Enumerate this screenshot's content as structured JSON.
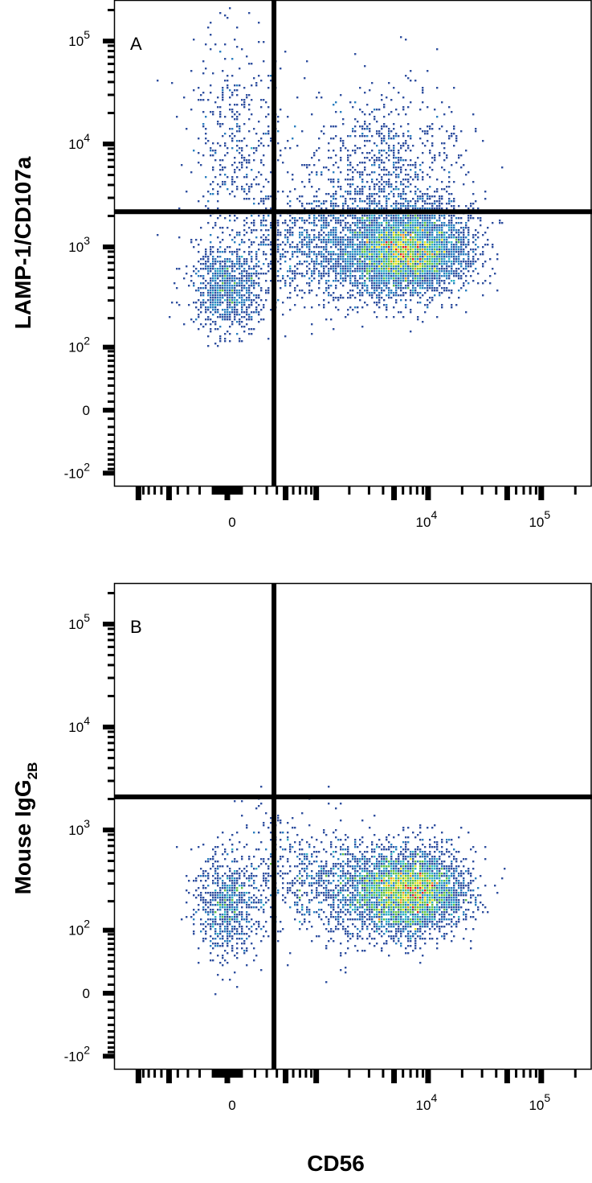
{
  "chart_data": [
    {
      "type": "scatter",
      "subtype": "flow-cytometry-density-dot-plot",
      "panel_label": "A",
      "xlabel": "CD56",
      "ylabel": "LAMP-1/CD107a",
      "x_scale": "biexponential",
      "y_scale": "biexponential",
      "x_ticks": [
        {
          "value": 0,
          "base": "0",
          "exp": ""
        },
        {
          "value": 10000,
          "base": "10",
          "exp": "4"
        },
        {
          "value": 100000,
          "base": "10",
          "exp": "5"
        }
      ],
      "y_ticks": [
        {
          "value": -100,
          "base": "-10",
          "exp": "2"
        },
        {
          "value": 0,
          "base": "0",
          "exp": ""
        },
        {
          "value": 100,
          "base": "10",
          "exp": "2"
        },
        {
          "value": 1000,
          "base": "10",
          "exp": "3"
        },
        {
          "value": 10000,
          "base": "10",
          "exp": "4"
        },
        {
          "value": 100000,
          "base": "10",
          "exp": "5"
        }
      ],
      "quadrant_gate": {
        "x": 370,
        "y": 2200
      },
      "populations": [
        {
          "x": 7000,
          "y": 900,
          "sd_x_decades": 0.26,
          "sd_y_decades": 0.2,
          "events": 3600
        },
        {
          "x": 3000,
          "y": 900,
          "sd_x_decades": 0.35,
          "sd_y_decades": 0.25,
          "events": 1300
        },
        {
          "x": 0,
          "y": 400,
          "sd_x_decades": 0.16,
          "sd_y_decades": 0.22,
          "events": 900
        },
        {
          "x": 4000,
          "y": 5000,
          "sd_x_decades": 0.35,
          "sd_y_decades": 0.4,
          "events": 900
        },
        {
          "x": 60,
          "y": 9000,
          "sd_x_decades": 0.22,
          "sd_y_decades": 0.55,
          "events": 450
        },
        {
          "x": 800,
          "y": 1100,
          "sd_x_decades": 0.3,
          "sd_y_decades": 0.3,
          "events": 550
        }
      ]
    },
    {
      "type": "scatter",
      "subtype": "flow-cytometry-density-dot-plot",
      "panel_label": "B",
      "xlabel": "CD56",
      "ylabel": "Mouse IgG",
      "ylabel_subscript": "2B",
      "x_scale": "biexponential",
      "y_scale": "biexponential",
      "x_ticks": [
        {
          "value": 0,
          "base": "0",
          "exp": ""
        },
        {
          "value": 10000,
          "base": "10",
          "exp": "4"
        },
        {
          "value": 100000,
          "base": "10",
          "exp": "5"
        }
      ],
      "y_ticks": [
        {
          "value": -100,
          "base": "-10",
          "exp": "2"
        },
        {
          "value": 0,
          "base": "0",
          "exp": ""
        },
        {
          "value": 100,
          "base": "10",
          "exp": "2"
        },
        {
          "value": 1000,
          "base": "10",
          "exp": "3"
        },
        {
          "value": 10000,
          "base": "10",
          "exp": "4"
        },
        {
          "value": 100000,
          "base": "10",
          "exp": "5"
        }
      ],
      "quadrant_gate": {
        "x": 370,
        "y": 2100
      },
      "populations": [
        {
          "x": 7000,
          "y": 250,
          "sd_x_decades": 0.24,
          "sd_y_decades": 0.2,
          "events": 3200
        },
        {
          "x": 2500,
          "y": 250,
          "sd_x_decades": 0.35,
          "sd_y_decades": 0.25,
          "events": 1000
        },
        {
          "x": 0,
          "y": 180,
          "sd_x_decades": 0.14,
          "sd_y_decades": 0.25,
          "events": 700
        },
        {
          "x": 500,
          "y": 450,
          "sd_x_decades": 0.3,
          "sd_y_decades": 0.3,
          "events": 350
        }
      ]
    }
  ],
  "shared_xlabel": "CD56",
  "density_colors": [
    "#2f4f9f",
    "#2a7fc0",
    "#2fb2c4",
    "#5fc042",
    "#e2e021",
    "#f29020",
    "#e21e1e"
  ]
}
